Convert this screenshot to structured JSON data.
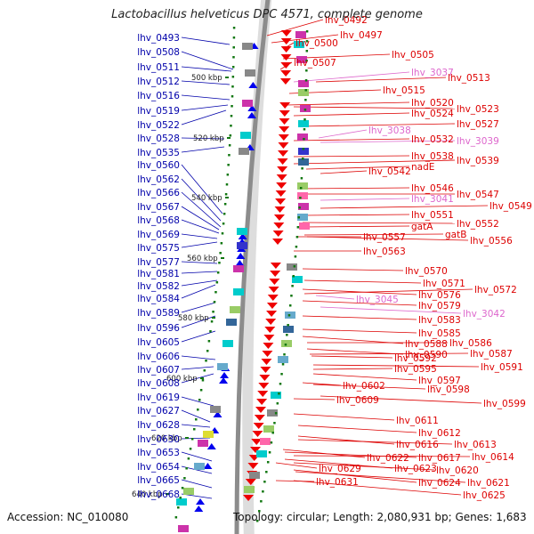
{
  "title": "Lactobacillus helveticus DPC 4571, complete genome",
  "footer": {
    "accession": "Accession: NC_010080",
    "summary": "Topology: circular; Length: 2,080,931 bp; Genes: 1,683"
  },
  "colors": {
    "left_labels": "#0000aa",
    "right_labels": "#dd0000",
    "rna_labels": "#dd66cc",
    "forward_arrows": "#0000ee",
    "reverse_arrows": "#ee0000",
    "backbone": "#888888",
    "ticks": "#117711"
  },
  "scale_labels": [
    "500 kbp",
    "520 kbp",
    "540 kbp",
    "560 kbp",
    "580 kbp",
    "600 kbp",
    "620 kbp",
    "640 kbp"
  ],
  "left_genes": [
    "lhv_0493",
    "lhv_0508",
    "lhv_0511",
    "lhv_0512",
    "lhv_0516",
    "lhv_0519",
    "lhv_0522",
    "lhv_0528",
    "lhv_0535",
    "lhv_0560",
    "lhv_0562",
    "lhv_0566",
    "lhv_0567",
    "lhv_0568",
    "lhv_0569",
    "lhv_0575",
    "lhv_0577",
    "lhv_0581",
    "lhv_0582",
    "lhv_0584",
    "lhv_0589",
    "lhv_0596",
    "lhv_0605",
    "lhv_0606",
    "lhv_0607",
    "lhv_0608",
    "lhv_0619",
    "lhv_0627",
    "lhv_0628",
    "lhv_0630",
    "lhv_0653",
    "lhv_0654",
    "lhv_0665",
    "lhv_0668"
  ],
  "right_genes": [
    "lhv_0492",
    "lhv_0497",
    "lhv_0500",
    "lhv_0505",
    "lhv_0507",
    "lhv_3037",
    "lhv_0513",
    "lhv_0515",
    "lhv_0520",
    "lhv_0523",
    "lhv_0524",
    "lhv_0527",
    "lhv_3038",
    "lhv_0532",
    "lhv_3039",
    "lhv_0538",
    "lhv_0539",
    "nadE",
    "lhv_0542",
    "lhv_0546",
    "lhv_0547",
    "lhv_3041",
    "lhv_0549",
    "lhv_0551",
    "lhv_0552",
    "gatA",
    "gatB",
    "lhv_0556",
    "lhv_0557",
    "lhv_0563",
    "lhv_0570",
    "lhv_0571",
    "lhv_0576",
    "lhv_0572",
    "lhv_3045",
    "lhv_0579",
    "lhv_3042",
    "lhv_0583",
    "lhv_0585",
    "lhv_0588",
    "lhv_0586",
    "lhv_0590",
    "lhv_0587",
    "lhv_0592",
    "lhv_0591",
    "lhv_0595",
    "lhv_0597",
    "lhv_0602",
    "lhv_0598",
    "lhv_0609",
    "lhv_0599",
    "lhv_0611",
    "lhv_0612",
    "lhv_0616",
    "lhv_0613",
    "lhv_0622",
    "lhv_0617",
    "lhv_0614",
    "lhv_0623",
    "lhv_0620",
    "lhv_0629",
    "lhv_0624",
    "lhv_0621",
    "lhv_0631",
    "lhv_0625"
  ],
  "rna_genes": [
    "lhv_3037",
    "lhv_3038",
    "lhv_3039",
    "lhv_3041",
    "lhv_3045",
    "lhv_3042"
  ]
}
